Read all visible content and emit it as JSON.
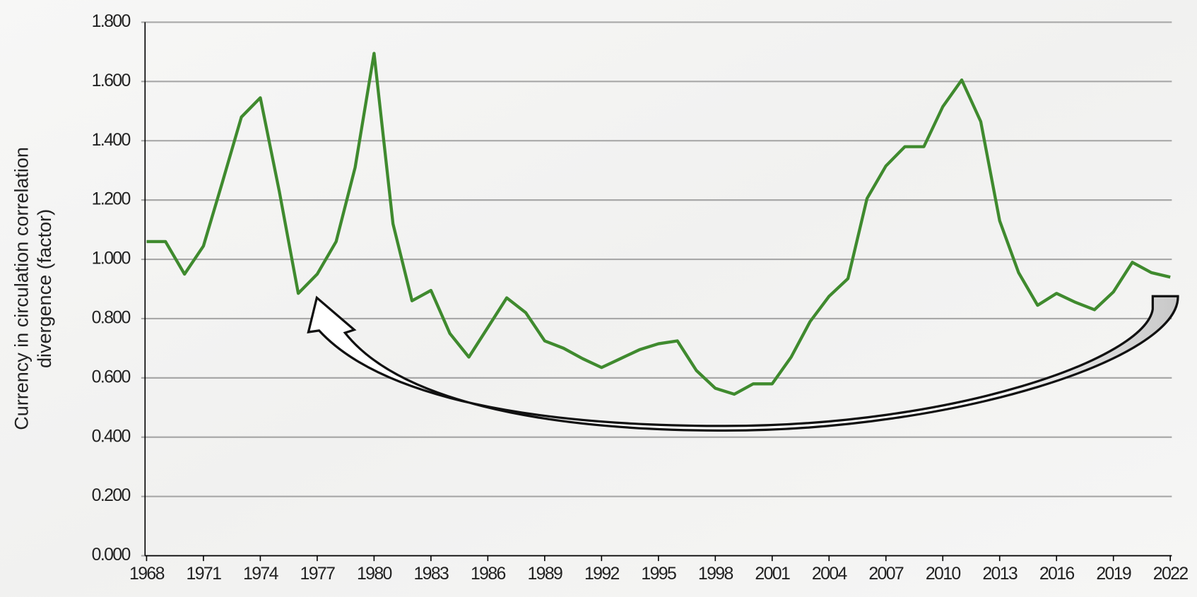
{
  "chart_data": {
    "type": "line",
    "ylabel": [
      "Currency in circulation correlation",
      "divergence (factor)"
    ],
    "x": [
      1968,
      1969,
      1970,
      1971,
      1972,
      1973,
      1974,
      1975,
      1976,
      1977,
      1978,
      1979,
      1980,
      1981,
      1982,
      1983,
      1984,
      1985,
      1986,
      1987,
      1988,
      1989,
      1990,
      1991,
      1992,
      1993,
      1994,
      1995,
      1996,
      1997,
      1998,
      1999,
      2000,
      2001,
      2002,
      2003,
      2004,
      2005,
      2006,
      2007,
      2008,
      2009,
      2010,
      2011,
      2012,
      2013,
      2014,
      2015,
      2016,
      2017,
      2018,
      2019,
      2020,
      2021,
      2022
    ],
    "series": [
      {
        "color": "#3f8a2e",
        "values": [
          1.06,
          1.06,
          0.95,
          1.045,
          1.26,
          1.48,
          1.545,
          1.23,
          0.885,
          0.95,
          1.06,
          1.31,
          1.695,
          1.12,
          0.86,
          0.895,
          0.75,
          0.67,
          0.77,
          0.87,
          0.82,
          0.725,
          0.7,
          0.665,
          0.635,
          0.665,
          0.695,
          0.715,
          0.725,
          0.625,
          0.565,
          0.545,
          0.58,
          0.58,
          0.67,
          0.79,
          0.875,
          0.935,
          1.205,
          1.315,
          1.38,
          1.38,
          1.515,
          1.605,
          1.465,
          1.13,
          0.955,
          0.845,
          0.885,
          0.855,
          0.83,
          0.89,
          0.99,
          0.955,
          0.94
        ]
      }
    ],
    "xlim": [
      1968,
      2022
    ],
    "xticks": [
      1968,
      1971,
      1974,
      1977,
      1980,
      1983,
      1986,
      1989,
      1992,
      1995,
      1998,
      2001,
      2004,
      2007,
      2010,
      2013,
      2016,
      2019,
      2022
    ],
    "ylim": [
      0,
      1.8
    ],
    "yticks": [
      {
        "value": 0,
        "label": "0.000"
      },
      {
        "value": 0.2,
        "label": "0.200"
      },
      {
        "value": 0.4,
        "label": "0.400"
      },
      {
        "value": 0.6,
        "label": "0.600"
      },
      {
        "value": 0.8,
        "label": "0.800"
      },
      {
        "value": 1,
        "label": "1.000"
      },
      {
        "value": 1.2,
        "label": "1.200"
      },
      {
        "value": 1.4,
        "label": "1.400"
      },
      {
        "value": 1.6,
        "label": "1.600"
      },
      {
        "value": 1.8,
        "label": "1.800"
      }
    ],
    "grid": true
  }
}
